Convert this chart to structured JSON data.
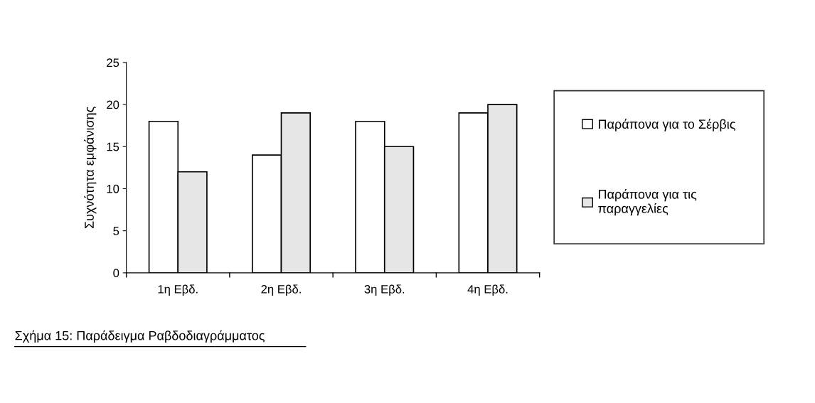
{
  "chart_data": {
    "type": "bar",
    "ylabel": "Συχνότητα εμφάνισης",
    "categories": [
      "1η Εβδ.",
      "2η Εβδ.",
      "3η Εβδ.",
      "4η Εβδ."
    ],
    "series": [
      {
        "name": "Παράπονα για το Σέρβις",
        "color": "#ffffff",
        "values": [
          18,
          14,
          18,
          19
        ]
      },
      {
        "name": "Παράπονα για τις\nπαραγγελίες",
        "color": "#e6e6e6",
        "values": [
          12,
          19,
          15,
          20
        ]
      }
    ],
    "ylim": [
      0,
      25
    ],
    "yticks": [
      0,
      5,
      10,
      15,
      20,
      25
    ],
    "grid": false,
    "legend": "right",
    "annotations": [
      "Σχήμα 15: Παράδειγμα Ραβδοδιαγράμματος"
    ]
  }
}
